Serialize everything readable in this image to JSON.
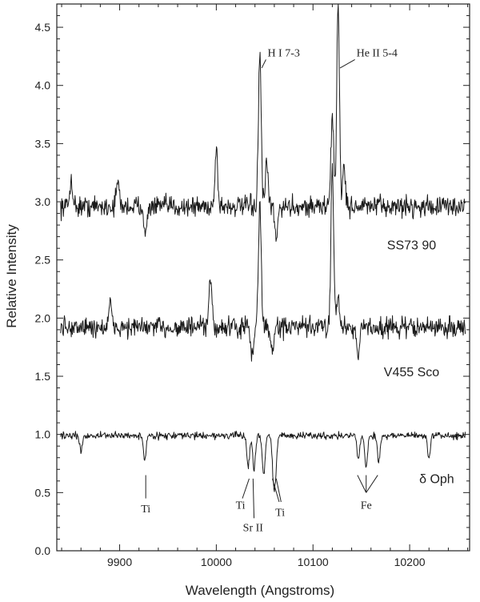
{
  "chart_data": {
    "type": "line",
    "title": "",
    "xlabel": "Wavelength (Angstroms)",
    "ylabel": "Relative Intensity",
    "xlim": [
      9835,
      10262
    ],
    "ylim": [
      0.0,
      4.7
    ],
    "xticks": [
      9900,
      10000,
      10100,
      10200
    ],
    "yticks": [
      0.0,
      0.5,
      1.0,
      1.5,
      2.0,
      2.5,
      3.0,
      3.5,
      4.0,
      4.5
    ],
    "xtick_labels": [
      "9900",
      "10000",
      "10100",
      "10200"
    ],
    "ytick_labels": [
      "0.0",
      "0.5",
      "1.0",
      "1.5",
      "2.0",
      "2.5",
      "3.0",
      "3.5",
      "4.0",
      "4.5"
    ],
    "grid": false,
    "legend": "none",
    "series": [
      {
        "name": "SS73 90",
        "baseline": 2.96,
        "noise": 0.055,
        "features": [
          {
            "x": 9850,
            "y": 3.2
          },
          {
            "x": 9898,
            "y": 3.18
          },
          {
            "x": 9927,
            "y": 2.7
          },
          {
            "x": 10000,
            "y": 3.45
          },
          {
            "x": 10045,
            "y": 4.28
          },
          {
            "x": 10052,
            "y": 3.32
          },
          {
            "x": 10062,
            "y": 2.65
          },
          {
            "x": 10120,
            "y": 3.75
          },
          {
            "x": 10126,
            "y": 4.7
          },
          {
            "x": 10132,
            "y": 3.3
          }
        ]
      },
      {
        "name": "V455 Sco",
        "baseline": 1.92,
        "noise": 0.055,
        "features": [
          {
            "x": 9890,
            "y": 2.12
          },
          {
            "x": 9994,
            "y": 2.35
          },
          {
            "x": 10037,
            "y": 1.65
          },
          {
            "x": 10045,
            "y": 3.0
          },
          {
            "x": 10058,
            "y": 1.68
          },
          {
            "x": 10120,
            "y": 3.35
          },
          {
            "x": 10126,
            "y": 2.2
          },
          {
            "x": 10147,
            "y": 1.7
          }
        ]
      },
      {
        "name": "δ Oph",
        "baseline": 0.99,
        "noise": 0.018,
        "features": [
          {
            "x": 9860,
            "y": 0.85
          },
          {
            "x": 9926,
            "y": 0.78
          },
          {
            "x": 10033,
            "y": 0.72
          },
          {
            "x": 10039,
            "y": 0.7
          },
          {
            "x": 10049,
            "y": 0.65
          },
          {
            "x": 10059,
            "y": 0.7
          },
          {
            "x": 10061,
            "y": 0.68
          },
          {
            "x": 10147,
            "y": 0.78
          },
          {
            "x": 10155,
            "y": 0.72
          },
          {
            "x": 10168,
            "y": 0.76
          },
          {
            "x": 10220,
            "y": 0.8
          }
        ]
      }
    ],
    "annotations": [
      {
        "text": "H I 7-3",
        "target": {
          "x": 10047,
          "y": 4.15
        },
        "label_pos": {
          "x": 10053,
          "y": 4.25
        }
      },
      {
        "text": "He II 5-4",
        "target": {
          "x": 10128,
          "y": 4.15
        },
        "label_pos": {
          "x": 10145,
          "y": 4.25
        }
      },
      {
        "text": "Ti",
        "lines": [
          {
            "x": 9927,
            "y1": 0.65,
            "y2": 0.45
          }
        ],
        "label_pos": {
          "x": 9927,
          "y": 0.33
        }
      },
      {
        "text": "Ti",
        "lines": [
          {
            "x": 10034,
            "y1": 0.62,
            "x2": 10027,
            "y2": 0.45
          }
        ],
        "label_pos": {
          "x": 10025,
          "y": 0.36
        }
      },
      {
        "text": "Sr II",
        "lines": [
          {
            "x": 10038,
            "y1": 0.62,
            "x2": 10039,
            "y2": 0.28
          }
        ],
        "label_pos": {
          "x": 10038,
          "y": 0.17
        }
      },
      {
        "text": "Ti",
        "lines": [
          {
            "x": 10058,
            "y1": 0.62,
            "x2": 10065,
            "y2": 0.42
          },
          {
            "x": 10062,
            "y1": 0.62,
            "x2": 10067,
            "y2": 0.42
          }
        ],
        "label_pos": {
          "x": 10066,
          "y": 0.3
        }
      },
      {
        "text": "Fe",
        "lines": [
          {
            "x": 10146,
            "y1": 0.65,
            "x2": 10155,
            "y2": 0.5
          },
          {
            "x": 10155,
            "y1": 0.65,
            "x2": 10155,
            "y2": 0.5
          },
          {
            "x": 10167,
            "y1": 0.65,
            "x2": 10155,
            "y2": 0.5
          }
        ],
        "label_pos": {
          "x": 10155,
          "y": 0.36
        }
      }
    ],
    "series_labels": [
      {
        "text": "SS73 90",
        "x": 10202,
        "y": 2.59
      },
      {
        "text": "V455 Sco",
        "x": 10202,
        "y": 1.5
      },
      {
        "text": "δ Oph",
        "x": 10228,
        "y": 0.58
      }
    ]
  }
}
